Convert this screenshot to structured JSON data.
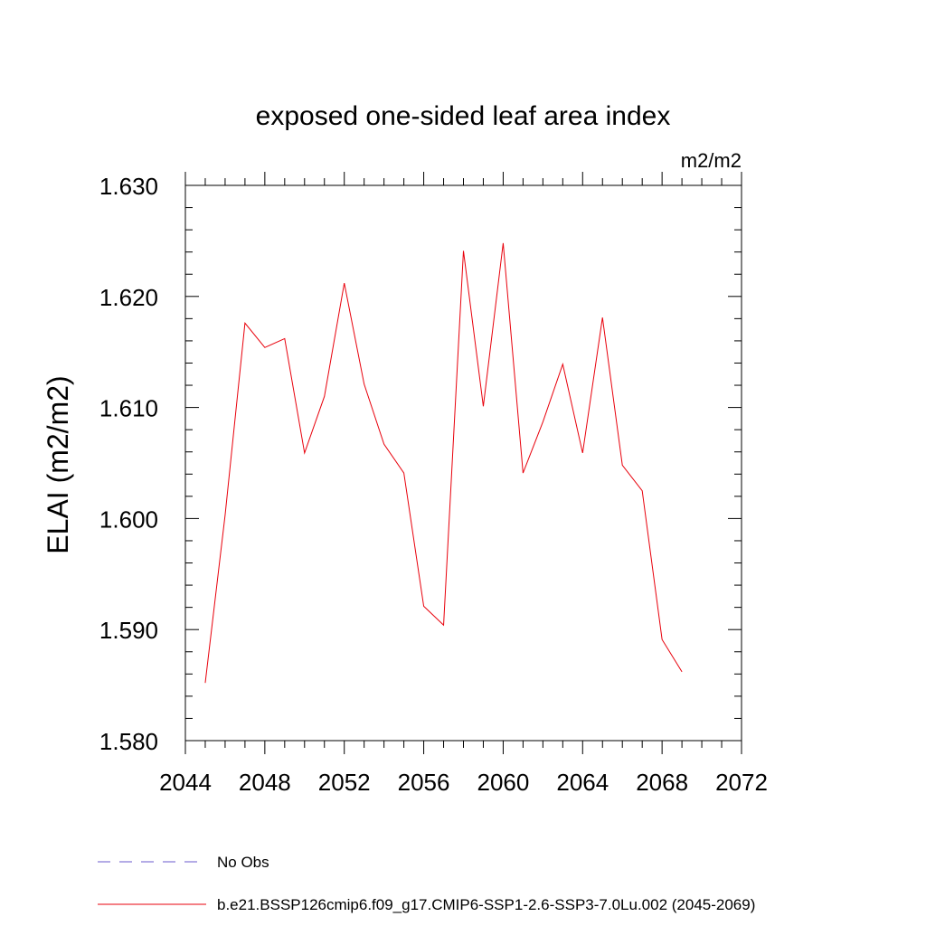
{
  "chart_data": {
    "type": "line",
    "title": "exposed one-sided leaf area index",
    "units": "m2/m2",
    "xlabel": "",
    "ylabel": "ELAI  (m2/m2)",
    "xlim": [
      2044,
      2072
    ],
    "ylim": [
      1.58,
      1.63
    ],
    "xticks": [
      2044,
      2048,
      2052,
      2056,
      2060,
      2064,
      2068,
      2072
    ],
    "xtick_labels": [
      "2044",
      "2048",
      "2052",
      "2056",
      "2060",
      "2064",
      "2068",
      "2072"
    ],
    "xminor_step": 1,
    "yticks": [
      1.58,
      1.59,
      1.6,
      1.61,
      1.62,
      1.63
    ],
    "ytick_labels": [
      "1.580",
      "1.590",
      "1.600",
      "1.610",
      "1.620",
      "1.630"
    ],
    "yminor_step": 0.002,
    "grid": false,
    "legend_position": "bottom-left",
    "series": [
      {
        "name": "No Obs",
        "color": "#6a5acd",
        "dashed": true,
        "x": [],
        "values": []
      },
      {
        "name": "b.e21.BSSP126cmip6.f09_g17.CMIP6-SSP1-2.6-SSP3-7.0Lu.002 (2045-2069)",
        "color": "#e8000b",
        "dashed": false,
        "x": [
          2045,
          2046,
          2047,
          2048,
          2049,
          2050,
          2051,
          2052,
          2053,
          2054,
          2055,
          2056,
          2057,
          2058,
          2059,
          2060,
          2061,
          2062,
          2063,
          2064,
          2065,
          2066,
          2067,
          2068,
          2069
        ],
        "values": [
          1.5852,
          1.6003,
          1.6176,
          1.6154,
          1.6162,
          1.6059,
          1.611,
          1.6212,
          1.6121,
          1.6067,
          1.6041,
          1.5921,
          1.5904,
          1.6241,
          1.6101,
          1.6248,
          1.6041,
          1.6087,
          1.6139,
          1.6059,
          1.6181,
          1.6048,
          1.6025,
          1.5891,
          1.5862
        ]
      }
    ]
  }
}
